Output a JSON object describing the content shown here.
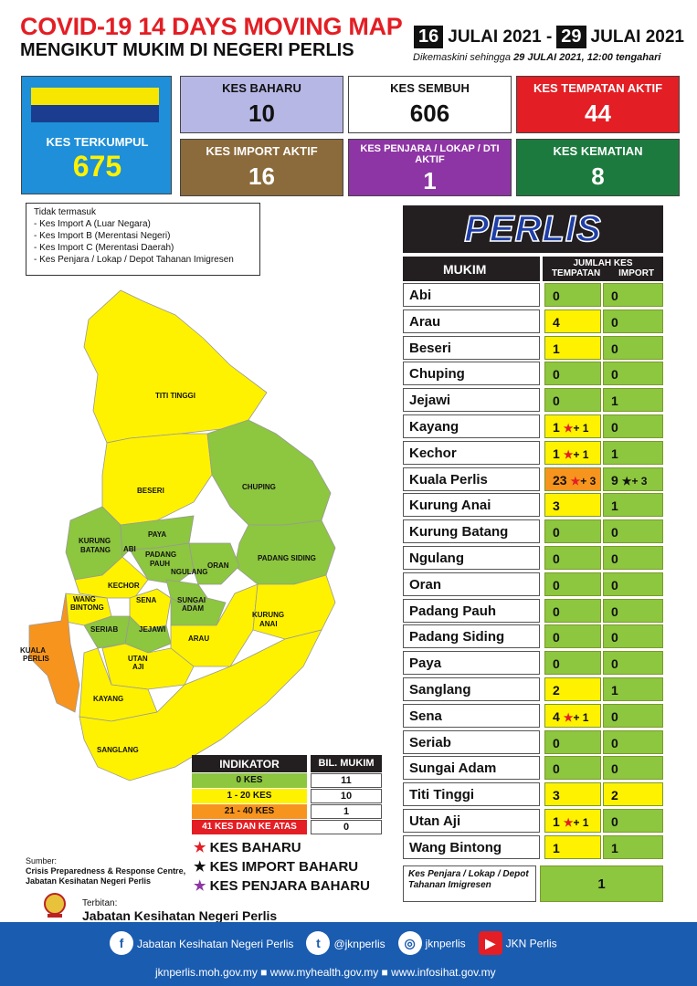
{
  "header": {
    "title": "COVID-19 14 DAYS MOVING MAP",
    "subtitle": "MENGIKUT MUKIM DI NEGERI PERLIS",
    "date_start_day": "16",
    "date_start_rest": "JULAI 2021 -",
    "date_end_day": "29",
    "date_end_rest": "JULAI 2021",
    "updated_prefix": "Dikemaskini sehingga",
    "updated_value": "29 JULAI  2021, 12:00 tengahari"
  },
  "flag_colors": [
    "#f7e600",
    "#1a3d8f"
  ],
  "stats": {
    "kes_terkumpul": {
      "label": "KES TERKUMPUL",
      "value": "675",
      "color": "#1e8fd8"
    },
    "kes_baharu": {
      "label": "KES BAHARU",
      "value": "10",
      "color": "#b7b7e6"
    },
    "kes_sembuh": {
      "label": "KES SEMBUH",
      "value": "606",
      "color": "#ffffff"
    },
    "kes_tempatan_aktif": {
      "label": "KES TEMPATAN AKTIF",
      "value": "44",
      "color": "#e31e24"
    },
    "kes_import_aktif": {
      "label": "KES IMPORT AKTIF",
      "value": "16",
      "color": "#8b6a3b"
    },
    "kes_penjara": {
      "label": "KES PENJARA / LOKAP / DTI AKTIF",
      "value": "1",
      "color": "#8e35a5"
    },
    "kes_kematian": {
      "label": "KES KEMATIAN",
      "value": "8",
      "color": "#1d7a3e"
    }
  },
  "note": {
    "title": "Tidak termasuk",
    "items": [
      "- Kes Import A (Luar Negara)",
      "- Kes Import B (Merentasi Negeri)",
      "- Kes Import C (Merentasi Daerah)",
      "- Kes Penjara / Lokap / Depot Tahanan Imigresen"
    ]
  },
  "table": {
    "state": "PERLIS",
    "col_mukim": "MUKIM",
    "col_jumlah": "JUMLAH KES",
    "col_tempatan": "TEMPATAN",
    "col_import": "IMPORT",
    "rows": [
      {
        "name": "Abi",
        "tempatan": "0",
        "t_new": "",
        "import": "0",
        "i_new": "",
        "t_color": "#8dc63f",
        "i_color": "#8dc63f"
      },
      {
        "name": "Arau",
        "tempatan": "4",
        "t_new": "",
        "import": "0",
        "i_new": "",
        "t_color": "#fff200",
        "i_color": "#8dc63f"
      },
      {
        "name": "Beseri",
        "tempatan": "1",
        "t_new": "",
        "import": "0",
        "i_new": "",
        "t_color": "#fff200",
        "i_color": "#8dc63f"
      },
      {
        "name": "Chuping",
        "tempatan": "0",
        "t_new": "",
        "import": "0",
        "i_new": "",
        "t_color": "#8dc63f",
        "i_color": "#8dc63f"
      },
      {
        "name": "Jejawi",
        "tempatan": "0",
        "t_new": "",
        "import": "1",
        "i_new": "",
        "t_color": "#8dc63f",
        "i_color": "#8dc63f"
      },
      {
        "name": "Kayang",
        "tempatan": "1",
        "t_new": "+ 1",
        "import": "0",
        "i_new": "",
        "t_color": "#fff200",
        "i_color": "#8dc63f"
      },
      {
        "name": "Kechor",
        "tempatan": "1",
        "t_new": "+ 1",
        "import": "1",
        "i_new": "",
        "t_color": "#fff200",
        "i_color": "#8dc63f"
      },
      {
        "name": "Kuala Perlis",
        "tempatan": "23",
        "t_new": "+ 3",
        "import": "9",
        "i_new": "+ 3",
        "t_color": "#f7941d",
        "i_color": "#8dc63f"
      },
      {
        "name": "Kurung Anai",
        "tempatan": "3",
        "t_new": "",
        "import": "1",
        "i_new": "",
        "t_color": "#fff200",
        "i_color": "#8dc63f"
      },
      {
        "name": "Kurung Batang",
        "tempatan": "0",
        "t_new": "",
        "import": "0",
        "i_new": "",
        "t_color": "#8dc63f",
        "i_color": "#8dc63f"
      },
      {
        "name": "Ngulang",
        "tempatan": "0",
        "t_new": "",
        "import": "0",
        "i_new": "",
        "t_color": "#8dc63f",
        "i_color": "#8dc63f"
      },
      {
        "name": "Oran",
        "tempatan": "0",
        "t_new": "",
        "import": "0",
        "i_new": "",
        "t_color": "#8dc63f",
        "i_color": "#8dc63f"
      },
      {
        "name": "Padang Pauh",
        "tempatan": "0",
        "t_new": "",
        "import": "0",
        "i_new": "",
        "t_color": "#8dc63f",
        "i_color": "#8dc63f"
      },
      {
        "name": "Padang Siding",
        "tempatan": "0",
        "t_new": "",
        "import": "0",
        "i_new": "",
        "t_color": "#8dc63f",
        "i_color": "#8dc63f"
      },
      {
        "name": "Paya",
        "tempatan": "0",
        "t_new": "",
        "import": "0",
        "i_new": "",
        "t_color": "#8dc63f",
        "i_color": "#8dc63f"
      },
      {
        "name": "Sanglang",
        "tempatan": "2",
        "t_new": "",
        "import": "1",
        "i_new": "",
        "t_color": "#fff200",
        "i_color": "#8dc63f"
      },
      {
        "name": "Sena",
        "tempatan": "4",
        "t_new": "+ 1",
        "import": "0",
        "i_new": "",
        "t_color": "#fff200",
        "i_color": "#8dc63f"
      },
      {
        "name": "Seriab",
        "tempatan": "0",
        "t_new": "",
        "import": "0",
        "i_new": "",
        "t_color": "#8dc63f",
        "i_color": "#8dc63f"
      },
      {
        "name": "Sungai Adam",
        "tempatan": "0",
        "t_new": "",
        "import": "0",
        "i_new": "",
        "t_color": "#8dc63f",
        "i_color": "#8dc63f"
      },
      {
        "name": "Titi Tinggi",
        "tempatan": "3",
        "t_new": "",
        "import": "2",
        "i_new": "",
        "t_color": "#fff200",
        "i_color": "#fff200"
      },
      {
        "name": "Utan Aji",
        "tempatan": "1",
        "t_new": "+ 1",
        "import": "0",
        "i_new": "",
        "t_color": "#fff200",
        "i_color": "#8dc63f"
      },
      {
        "name": "Wang Bintong",
        "tempatan": "1",
        "t_new": "",
        "import": "1",
        "i_new": "",
        "t_color": "#fff200",
        "i_color": "#8dc63f"
      }
    ],
    "penjara_label": "Kes Penjara / Lokap / Depot Tahanan Imigresen",
    "penjara_value": "1"
  },
  "indikator": {
    "header": "INDIKATOR",
    "header2": "BIL. MUKIM",
    "rows": [
      {
        "label": "0 KES",
        "count": "11",
        "color": "#8dc63f"
      },
      {
        "label": "1 - 20 KES",
        "count": "10",
        "color": "#fff200"
      },
      {
        "label": "21 - 40 KES",
        "count": "1",
        "color": "#f7941d"
      },
      {
        "label": "41 KES DAN KE ATAS",
        "count": "0",
        "color": "#e31e24"
      }
    ]
  },
  "legend": {
    "red": "KES BAHARU",
    "black": "KES IMPORT BAHARU",
    "purple": "KES PENJARA BAHARU"
  },
  "map_labels": {
    "titi_tinggi": "TITI TINGGI",
    "beseri": "BESERI",
    "chuping": "CHUPING",
    "paya": "PAYA",
    "kurung_batang": "KURUNG BATANG",
    "abi": "ABI",
    "padang_pauh": "PADANG PAUH",
    "ngulang": "NGULANG",
    "oran": "ORAN",
    "padang_siding": "PADANG SIDING",
    "kechor": "KECHOR",
    "wang_bintong": "WANG BINTONG",
    "sena": "SENA",
    "sungai_adam": "SUNGAI ADAM",
    "kurung_anai": "KURUNG ANAI",
    "seriab": "SERIAB",
    "jejawi": "JEJAWI",
    "arau": "ARAU",
    "kuala_perlis": "KUALA PERLIS",
    "utan_aji": "UTAN AJI",
    "kayang": "KAYANG",
    "sanglang": "SANGLANG"
  },
  "source": {
    "label": "Sumber:",
    "line1": "Crisis Preparedness & Response Centre,",
    "line2": "Jabatan Kesihatan Negeri Perlis"
  },
  "terbitan": {
    "label": "Terbitan:",
    "org": "Jabatan Kesihatan Negeri Perlis"
  },
  "footer": {
    "facebook": "Jabatan Kesihatan Negeri Perlis",
    "twitter": "@jknperlis",
    "instagram": "jknperlis",
    "youtube": "JKN Perlis",
    "sites": "jknperlis.moh.gov.my  ■  www.myhealth.gov.my  ■  www.infosihat.gov.my"
  }
}
